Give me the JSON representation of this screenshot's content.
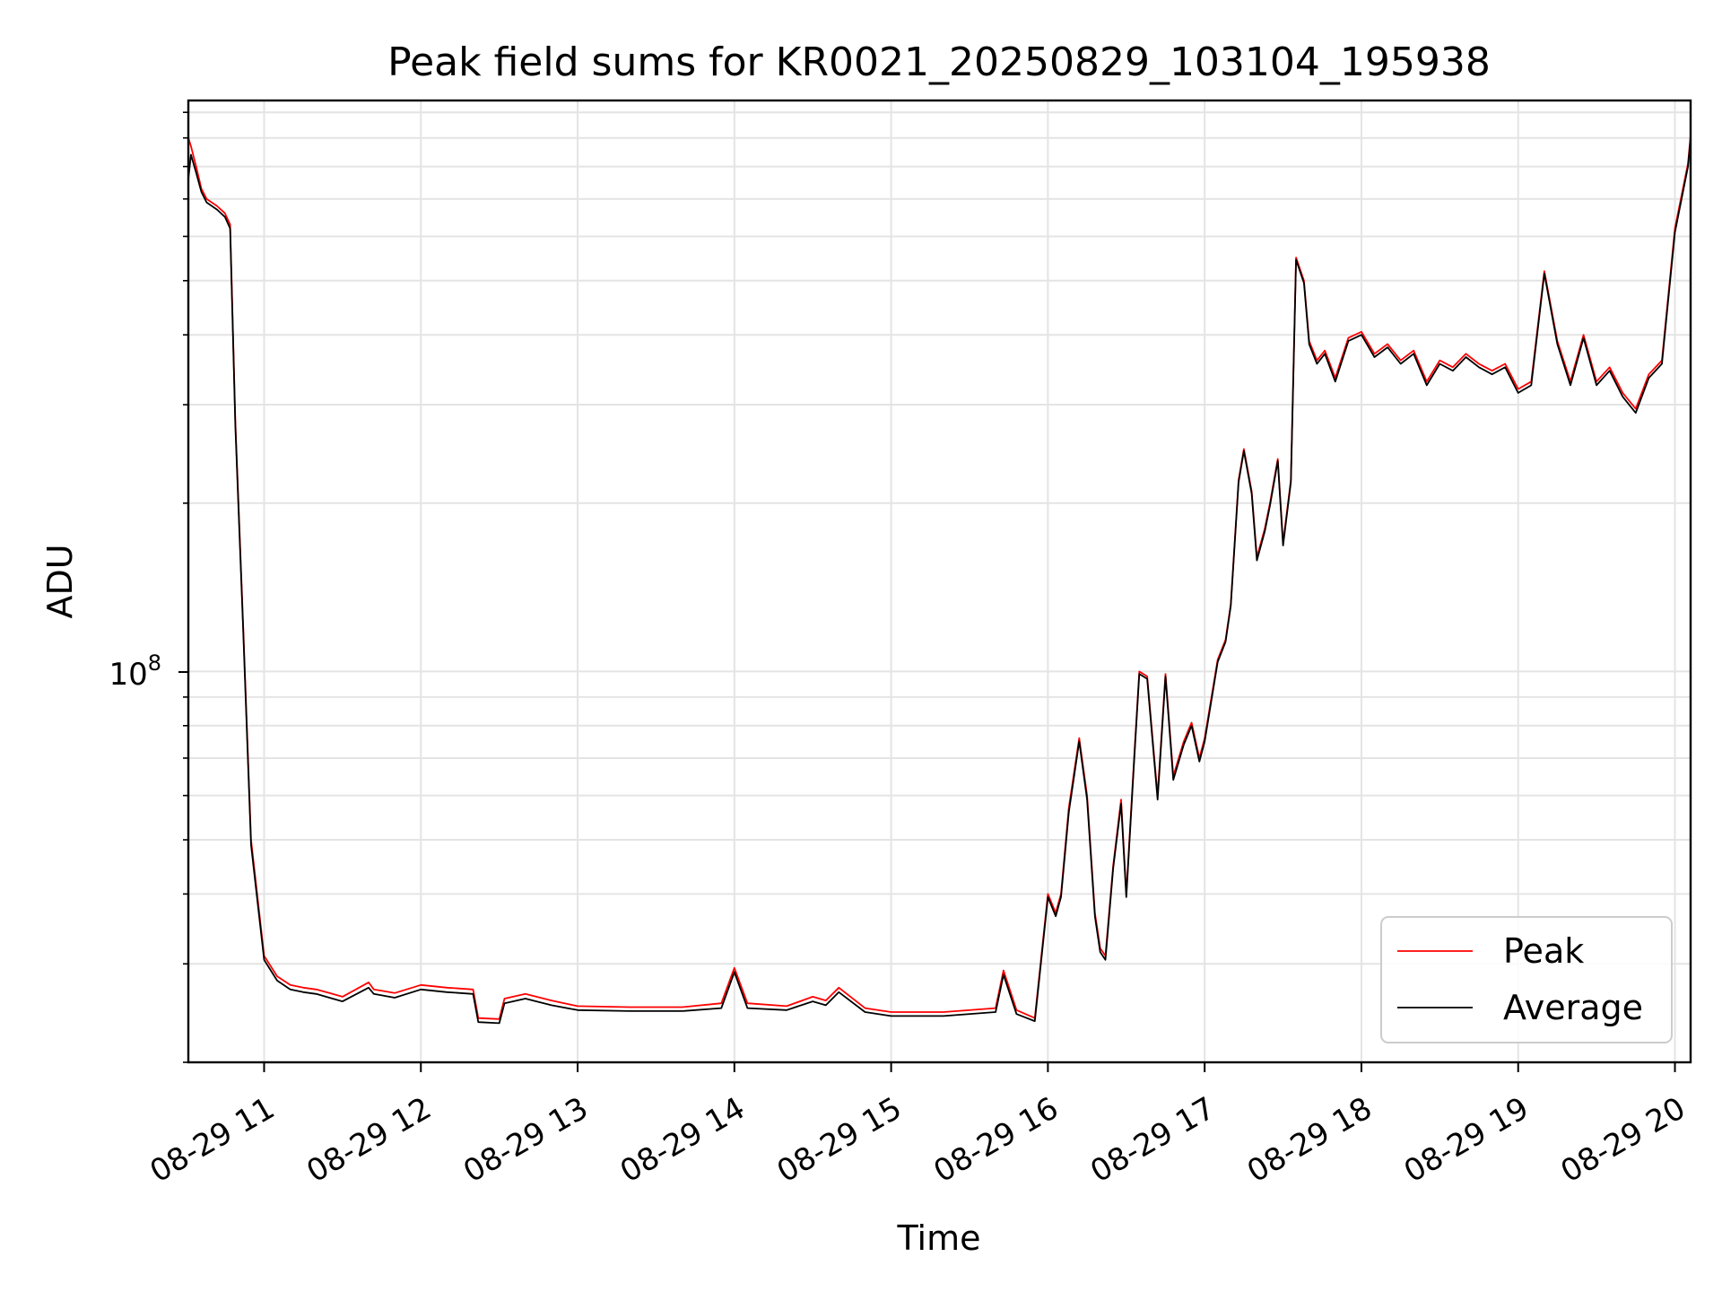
{
  "chart_data": {
    "type": "line",
    "title": "Peak field sums for KR0021_20250829_103104_195938",
    "xlabel": "Time",
    "ylabel": "ADU",
    "y_scale": "log",
    "grid": true,
    "legend_position": "lower-right",
    "xlim": [
      "2025-08-29 10:31",
      "2025-08-29 20:06"
    ],
    "ylim": [
      20000000,
      1050000000
    ],
    "x_ticks": [
      "08-29 11",
      "08-29 12",
      "08-29 13",
      "08-29 14",
      "08-29 15",
      "08-29 16",
      "08-29 17",
      "08-29 18",
      "08-29 19",
      "08-29 20"
    ],
    "y_ticks": [
      "10^8"
    ],
    "y_tick_major": {
      "base": "10",
      "exponent": "8"
    },
    "series": [
      {
        "name": "Peak",
        "color": "#ff0000",
        "x": [
          "10:31",
          "10:32",
          "10:34",
          "10:36",
          "10:38",
          "10:42",
          "10:45",
          "10:47",
          "10:49",
          "10:52",
          "10:55",
          "11:00",
          "11:05",
          "11:10",
          "11:15",
          "11:20",
          "11:25",
          "11:30",
          "11:40",
          "11:42",
          "11:50",
          "12:00",
          "12:10",
          "12:20",
          "12:22",
          "12:30",
          "12:32",
          "12:40",
          "12:50",
          "13:00",
          "13:20",
          "13:40",
          "13:55",
          "14:00",
          "14:05",
          "14:20",
          "14:30",
          "14:35",
          "14:40",
          "14:50",
          "15:00",
          "15:20",
          "15:40",
          "15:43",
          "15:48",
          "15:55",
          "16:00",
          "16:03",
          "16:05",
          "16:08",
          "16:12",
          "16:15",
          "16:18",
          "16:20",
          "16:22",
          "16:25",
          "16:28",
          "16:30",
          "16:33",
          "16:35",
          "16:38",
          "16:42",
          "16:45",
          "16:48",
          "16:52",
          "16:55",
          "16:58",
          "17:00",
          "17:05",
          "17:08",
          "17:10",
          "17:13",
          "17:15",
          "17:18",
          "17:20",
          "17:23",
          "17:25",
          "17:28",
          "17:30",
          "17:33",
          "17:35",
          "17:38",
          "17:40",
          "17:43",
          "17:46",
          "17:50",
          "17:55",
          "18:00",
          "18:05",
          "18:10",
          "18:15",
          "18:20",
          "18:25",
          "18:30",
          "18:35",
          "18:40",
          "18:45",
          "18:50",
          "18:55",
          "19:00",
          "19:05",
          "19:10",
          "19:15",
          "19:20",
          "19:25",
          "19:30",
          "19:35",
          "19:40",
          "19:45",
          "19:50",
          "19:55",
          "20:00",
          "20:05",
          "20:06"
        ],
        "values": [
          900000000.0,
          870000000.0,
          800000000.0,
          730000000.0,
          700000000.0,
          680000000.0,
          660000000.0,
          630000000.0,
          280000000.0,
          120000000.0,
          50000000.0,
          31000000.0,
          28500000.0,
          27500000.0,
          27200000.0,
          27000000.0,
          26600000.0,
          26200000.0,
          27800000.0,
          27000000.0,
          26600000.0,
          27500000.0,
          27200000.0,
          27000000.0,
          24000000.0,
          23900000.0,
          26000000.0,
          26500000.0,
          25800000.0,
          25200000.0,
          25100000.0,
          25100000.0,
          25500000.0,
          29500000.0,
          25500000.0,
          25200000.0,
          26200000.0,
          25800000.0,
          27200000.0,
          25000000.0,
          24600000.0,
          24600000.0,
          25000000.0,
          29200000.0,
          24800000.0,
          24000000.0,
          40000000.0,
          37000000.0,
          40000000.0,
          57000000.0,
          76000000.0,
          60000000.0,
          37000000.0,
          32000000.0,
          31000000.0,
          45000000.0,
          59000000.0,
          40000000.0,
          70000000.0,
          100000000.0,
          98000000.0,
          60000000.0,
          99000000.0,
          65000000.0,
          75000000.0,
          81000000.0,
          70000000.0,
          76000000.0,
          105000000.0,
          114000000.0,
          132000000.0,
          220000000.0,
          250000000.0,
          210000000.0,
          160000000.0,
          180000000.0,
          200000000.0,
          240000000.0,
          170000000.0,
          220000000.0,
          550000000.0,
          500000000.0,
          390000000.0,
          360000000.0,
          375000000.0,
          335000000.0,
          395000000.0,
          405000000.0,
          370000000.0,
          385000000.0,
          360000000.0,
          375000000.0,
          330000000.0,
          360000000.0,
          350000000.0,
          370000000.0,
          355000000.0,
          345000000.0,
          355000000.0,
          320000000.0,
          330000000.0,
          520000000.0,
          390000000.0,
          330000000.0,
          400000000.0,
          330000000.0,
          350000000.0,
          315000000.0,
          295000000.0,
          340000000.0,
          360000000.0,
          620000000.0,
          810000000.0,
          910000000.0
        ]
      },
      {
        "name": "Average",
        "color": "#000000",
        "x": [
          "10:31",
          "10:32",
          "10:34",
          "10:36",
          "10:38",
          "10:42",
          "10:45",
          "10:47",
          "10:49",
          "10:52",
          "10:55",
          "11:00",
          "11:05",
          "11:10",
          "11:15",
          "11:20",
          "11:25",
          "11:30",
          "11:40",
          "11:42",
          "11:50",
          "12:00",
          "12:10",
          "12:20",
          "12:22",
          "12:30",
          "12:32",
          "12:40",
          "12:50",
          "13:00",
          "13:20",
          "13:40",
          "13:55",
          "14:00",
          "14:05",
          "14:20",
          "14:30",
          "14:35",
          "14:40",
          "14:50",
          "15:00",
          "15:20",
          "15:40",
          "15:43",
          "15:48",
          "15:55",
          "16:00",
          "16:03",
          "16:05",
          "16:08",
          "16:12",
          "16:15",
          "16:18",
          "16:20",
          "16:22",
          "16:25",
          "16:28",
          "16:30",
          "16:33",
          "16:35",
          "16:38",
          "16:42",
          "16:45",
          "16:48",
          "16:52",
          "16:55",
          "16:58",
          "17:00",
          "17:05",
          "17:08",
          "17:10",
          "17:13",
          "17:15",
          "17:18",
          "17:20",
          "17:23",
          "17:25",
          "17:28",
          "17:30",
          "17:33",
          "17:35",
          "17:38",
          "17:40",
          "17:43",
          "17:46",
          "17:50",
          "17:55",
          "18:00",
          "18:05",
          "18:10",
          "18:15",
          "18:20",
          "18:25",
          "18:30",
          "18:35",
          "18:40",
          "18:45",
          "18:50",
          "18:55",
          "19:00",
          "19:05",
          "19:10",
          "19:15",
          "19:20",
          "19:25",
          "19:30",
          "19:35",
          "19:40",
          "19:45",
          "19:50",
          "19:55",
          "20:00",
          "20:05",
          "20:06"
        ],
        "values": [
          760000000.0,
          840000000.0,
          780000000.0,
          720000000.0,
          690000000.0,
          670000000.0,
          650000000.0,
          620000000.0,
          275000000.0,
          118000000.0,
          49000000.0,
          30500000.0,
          28000000.0,
          27000000.0,
          26700000.0,
          26500000.0,
          26100000.0,
          25700000.0,
          27200000.0,
          26500000.0,
          26100000.0,
          27000000.0,
          26700000.0,
          26500000.0,
          23600000.0,
          23500000.0,
          25500000.0,
          26000000.0,
          25300000.0,
          24800000.0,
          24700000.0,
          24700000.0,
          25000000.0,
          29000000.0,
          25000000.0,
          24800000.0,
          25700000.0,
          25300000.0,
          26700000.0,
          24600000.0,
          24200000.0,
          24200000.0,
          24600000.0,
          28700000.0,
          24400000.0,
          23700000.0,
          39500000.0,
          36500000.0,
          39500000.0,
          56000000.0,
          75000000.0,
          59000000.0,
          36500000.0,
          31500000.0,
          30500000.0,
          44500000.0,
          58000000.0,
          39500000.0,
          69000000.0,
          99000000.0,
          97000000.0,
          59000000.0,
          98000000.0,
          64000000.0,
          74000000.0,
          80000000.0,
          69000000.0,
          75000000.0,
          104000000.0,
          113000000.0,
          131000000.0,
          218000000.0,
          248000000.0,
          208000000.0,
          158000000.0,
          178000000.0,
          198000000.0,
          238000000.0,
          168000000.0,
          218000000.0,
          545000000.0,
          495000000.0,
          385000000.0,
          355000000.0,
          370000000.0,
          330000000.0,
          390000000.0,
          400000000.0,
          365000000.0,
          380000000.0,
          355000000.0,
          370000000.0,
          325000000.0,
          355000000.0,
          345000000.0,
          365000000.0,
          350000000.0,
          340000000.0,
          350000000.0,
          315000000.0,
          325000000.0,
          515000000.0,
          385000000.0,
          325000000.0,
          395000000.0,
          325000000.0,
          345000000.0,
          310000000.0,
          290000000.0,
          335000000.0,
          355000000.0,
          610000000.0,
          800000000.0,
          900000000.0
        ]
      }
    ]
  }
}
